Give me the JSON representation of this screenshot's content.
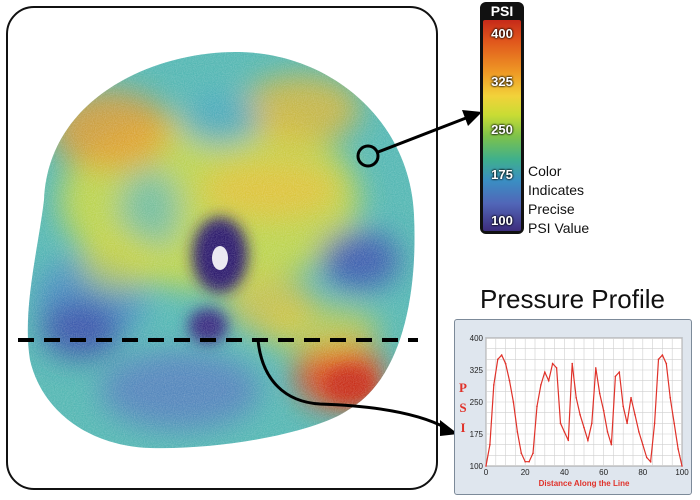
{
  "colorbar": {
    "title": "PSI",
    "ticks": [
      "400",
      "325",
      "250",
      "175",
      "100"
    ],
    "colors": [
      "#c62a1a",
      "#ef9a25",
      "#f2d23a",
      "#7ec24a",
      "#3fb08c",
      "#3a8fc3",
      "#3d2d7d"
    ]
  },
  "legend_lines": [
    "Color",
    "Indicates",
    "Precise",
    "PSI Value"
  ],
  "profile": {
    "title": "Pressure Profile",
    "ylabel_letters": [
      "P",
      "S",
      "I"
    ],
    "xlabel": "Distance Along the Line",
    "yticks": [
      "400",
      "325",
      "250",
      "175",
      "100"
    ],
    "xticks": [
      "0",
      "20",
      "40",
      "60",
      "80",
      "100"
    ],
    "line_color": "#e0322a"
  },
  "chart_data": {
    "type": "line",
    "title": "Pressure Profile",
    "xlabel": "Distance Along the Line",
    "ylabel": "PSI",
    "xlim": [
      0,
      100
    ],
    "ylim": [
      100,
      400
    ],
    "series": [
      {
        "x": [
          0,
          2,
          4,
          6,
          8,
          10,
          12,
          14,
          16,
          18,
          20,
          22,
          24,
          26,
          28,
          30,
          32,
          34,
          36,
          38,
          40,
          42,
          44,
          46,
          48,
          50,
          52,
          54,
          56,
          58,
          60,
          62,
          64,
          66,
          68,
          70,
          72,
          74,
          76,
          78,
          80,
          82,
          84,
          86,
          88,
          90,
          92,
          94,
          96,
          98,
          100
        ],
        "values": [
          100,
          150,
          290,
          350,
          360,
          340,
          300,
          250,
          180,
          130,
          110,
          110,
          130,
          240,
          290,
          320,
          300,
          340,
          330,
          200,
          180,
          160,
          340,
          260,
          220,
          190,
          160,
          200,
          330,
          270,
          230,
          180,
          150,
          310,
          320,
          240,
          200,
          260,
          220,
          180,
          150,
          120,
          110,
          200,
          350,
          360,
          340,
          260,
          200,
          140,
          100
        ]
      }
    ]
  }
}
